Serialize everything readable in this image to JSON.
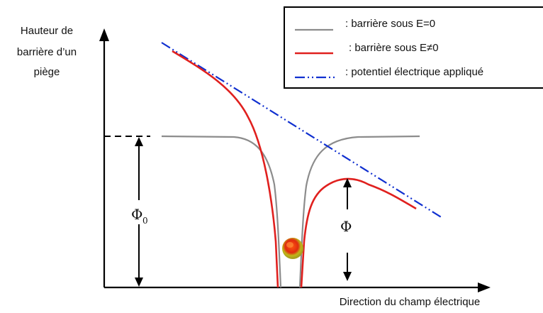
{
  "axes": {
    "y_label_lines": [
      "Hauteur de",
      "barrière d’un",
      "piège"
    ],
    "x_label": "Direction du champ électrique"
  },
  "legend": {
    "items": [
      {
        "label": ": barrière sous E=0",
        "color": "#8c8c8c",
        "style": "solid"
      },
      {
        "label": ": barrière sous E≠0",
        "color": "#e0201e",
        "style": "solid"
      },
      {
        "label": ": potentiel  électrique appliqué",
        "color": "#1030d0",
        "style": "dash-dot-dot"
      }
    ]
  },
  "annotations": {
    "phi0_symbol": "Φ",
    "phi0_subscript": "0",
    "phi_symbol": "Φ"
  },
  "colors": {
    "axis": "#000000",
    "zero_field_barrier": "#8c8c8c",
    "field_barrier": "#e0201e",
    "applied_potential": "#1030d0",
    "electron_outer": "#c8c020",
    "electron_inner": "#e83010"
  },
  "icons": {
    "electron": "electron-particle-icon"
  }
}
